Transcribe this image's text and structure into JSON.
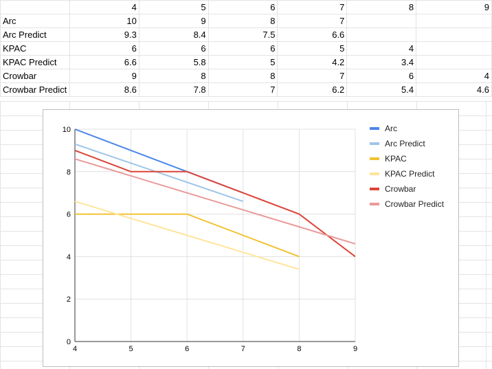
{
  "sheet": {
    "header_row": [
      "",
      "4",
      "5",
      "6",
      "7",
      "8",
      "9"
    ],
    "rows": [
      {
        "label": "Arc",
        "cells": [
          "10",
          "9",
          "8",
          "7",
          "",
          ""
        ]
      },
      {
        "label": "Arc Predict",
        "cells": [
          "9.3",
          "8.4",
          "7.5",
          "6.6",
          "",
          ""
        ]
      },
      {
        "label": "KPAC",
        "cells": [
          "6",
          "6",
          "6",
          "5",
          "4",
          ""
        ]
      },
      {
        "label": "KPAC Predict",
        "cells": [
          "6.6",
          "5.8",
          "5",
          "4.2",
          "3.4",
          ""
        ]
      },
      {
        "label": "Crowbar",
        "cells": [
          "9",
          "8",
          "8",
          "7",
          "6",
          "4"
        ]
      },
      {
        "label": "Crowbar Predict",
        "cells": [
          "8.6",
          "7.8",
          "7",
          "6.2",
          "5.4",
          "4.6"
        ]
      }
    ]
  },
  "chart_data": {
    "type": "line",
    "title": "",
    "xlabel": "",
    "ylabel": "",
    "xlim": [
      4,
      9
    ],
    "ylim": [
      0,
      10
    ],
    "x_ticks": [
      "4",
      "5",
      "6",
      "7",
      "8",
      "9"
    ],
    "y_ticks": [
      "0",
      "2",
      "4",
      "6",
      "8",
      "10"
    ],
    "grid": true,
    "legend_position": "right",
    "x": [
      4,
      5,
      6,
      7,
      8,
      9
    ],
    "series": [
      {
        "name": "Arc",
        "color": "#4a86e8",
        "values": [
          10,
          9,
          8,
          7,
          null,
          null
        ]
      },
      {
        "name": "Arc Predict",
        "color": "#9fc5e8",
        "values": [
          9.3,
          8.4,
          7.5,
          6.6,
          null,
          null
        ]
      },
      {
        "name": "KPAC",
        "color": "#f1c232",
        "values": [
          6,
          6,
          6,
          5,
          4,
          null
        ]
      },
      {
        "name": "KPAC Predict",
        "color": "#ffe599",
        "values": [
          6.6,
          5.8,
          5,
          4.2,
          3.4,
          null
        ]
      },
      {
        "name": "Crowbar",
        "color": "#db4437",
        "values": [
          9,
          8,
          8,
          7,
          6,
          4
        ]
      },
      {
        "name": "Crowbar Predict",
        "color": "#ea9999",
        "values": [
          8.6,
          7.8,
          7,
          6.2,
          5.4,
          4.6
        ]
      }
    ]
  }
}
